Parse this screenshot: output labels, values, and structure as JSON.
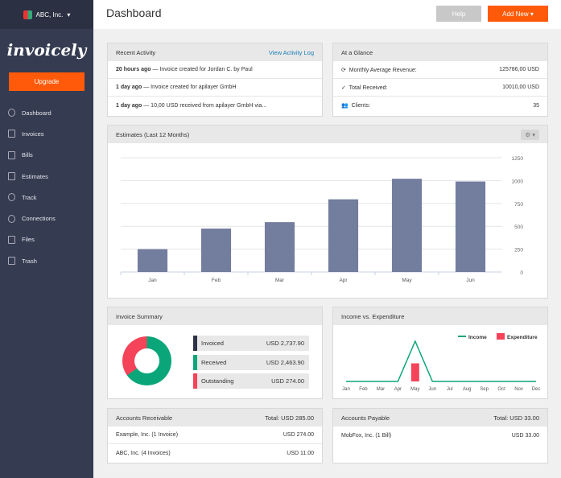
{
  "sidebar": {
    "org": "ABC, Inc.",
    "logo": "invoicely",
    "upgrade": "Upgrade",
    "items": [
      {
        "label": "Dashboard",
        "icon": "pie-chart-icon"
      },
      {
        "label": "Invoices",
        "icon": "invoice-icon"
      },
      {
        "label": "Bills",
        "icon": "bill-icon"
      },
      {
        "label": "Estimates",
        "icon": "document-icon"
      },
      {
        "label": "Track",
        "icon": "alarm-clock-icon"
      },
      {
        "label": "Connections",
        "icon": "connections-icon"
      },
      {
        "label": "Files",
        "icon": "files-icon"
      },
      {
        "label": "Trash",
        "icon": "trash-icon"
      }
    ]
  },
  "header": {
    "title": "Dashboard",
    "help": "Help",
    "add_new": "Add New"
  },
  "recent": {
    "title": "Recent Activity",
    "link": "View Activity Log",
    "items": [
      {
        "when": "20 hours ago",
        "text": " — Invoice created for Jordan C. by Paul"
      },
      {
        "when": "1 day ago",
        "text": " — Invoice created for apilayer GmbH"
      },
      {
        "when": "1 day ago",
        "text": " — 10,00 USD received from apilayer GmbH via..."
      }
    ]
  },
  "glance": {
    "title": "At a Glance",
    "rows": [
      {
        "label": "Monthly Average Revenue:",
        "value": "125786,00 USD"
      },
      {
        "label": "Total Received:",
        "value": "10010,00 USD"
      },
      {
        "label": "Clients:",
        "value": "35"
      }
    ]
  },
  "estimates": {
    "title": "Estimates (Last 12 Months)"
  },
  "chart_data": [
    {
      "type": "bar",
      "title": "Estimates (Last 12 Months)",
      "categories": [
        "Jan",
        "Feb",
        "Mar",
        "Apr",
        "May",
        "Jun"
      ],
      "values": [
        250,
        475,
        545,
        795,
        1020,
        990
      ],
      "yticks": [
        "0",
        "250",
        "500",
        "750",
        "1000",
        "1250"
      ],
      "ylim": [
        0,
        1250
      ],
      "grid": true,
      "color": "#737d9e"
    },
    {
      "type": "line",
      "title": "Income vs. Expenditure",
      "categories": [
        "Jan",
        "Feb",
        "Mar",
        "Apr",
        "May",
        "Jun",
        "Jul",
        "Aug",
        "Sep",
        "Oct",
        "Nov",
        "Dec"
      ],
      "series": [
        {
          "name": "Income",
          "type": "line",
          "color": "#0aa679",
          "values": [
            0,
            0,
            0,
            0,
            1,
            0,
            0,
            0,
            0,
            0,
            0,
            0
          ]
        },
        {
          "name": "Expenditure",
          "type": "bar",
          "color": "#f5435a",
          "values": [
            0,
            0,
            0,
            0,
            0.45,
            0,
            0,
            0,
            0,
            0,
            0,
            0
          ]
        }
      ],
      "legend": "top-right"
    }
  ],
  "invoice_summary": {
    "title": "Invoice Summary",
    "items": [
      {
        "label": "Invoiced",
        "value": "USD 2,737.90",
        "color": "#2e3347"
      },
      {
        "label": "Received",
        "value": "USD 2,463.90",
        "color": "#0aa679"
      },
      {
        "label": "Outstanding",
        "value": "USD 274.00",
        "color": "#f5435a"
      }
    ]
  },
  "income": {
    "title": "Income vs. Expenditure"
  },
  "receivable": {
    "title": "Accounts Receivable",
    "total": "Total: USD 285.00",
    "rows": [
      {
        "name": "Example, Inc. (1 Invoice)",
        "value": "USD 274.00"
      },
      {
        "name": "ABC, Inc. (4 Invoices)",
        "value": "USD 11.00"
      }
    ]
  },
  "payable": {
    "title": "Accounts Payable",
    "total": "Total: USD 33.00",
    "rows": [
      {
        "name": "MobFox, Inc. (1 Bill)",
        "value": "USD 33.00"
      }
    ]
  }
}
